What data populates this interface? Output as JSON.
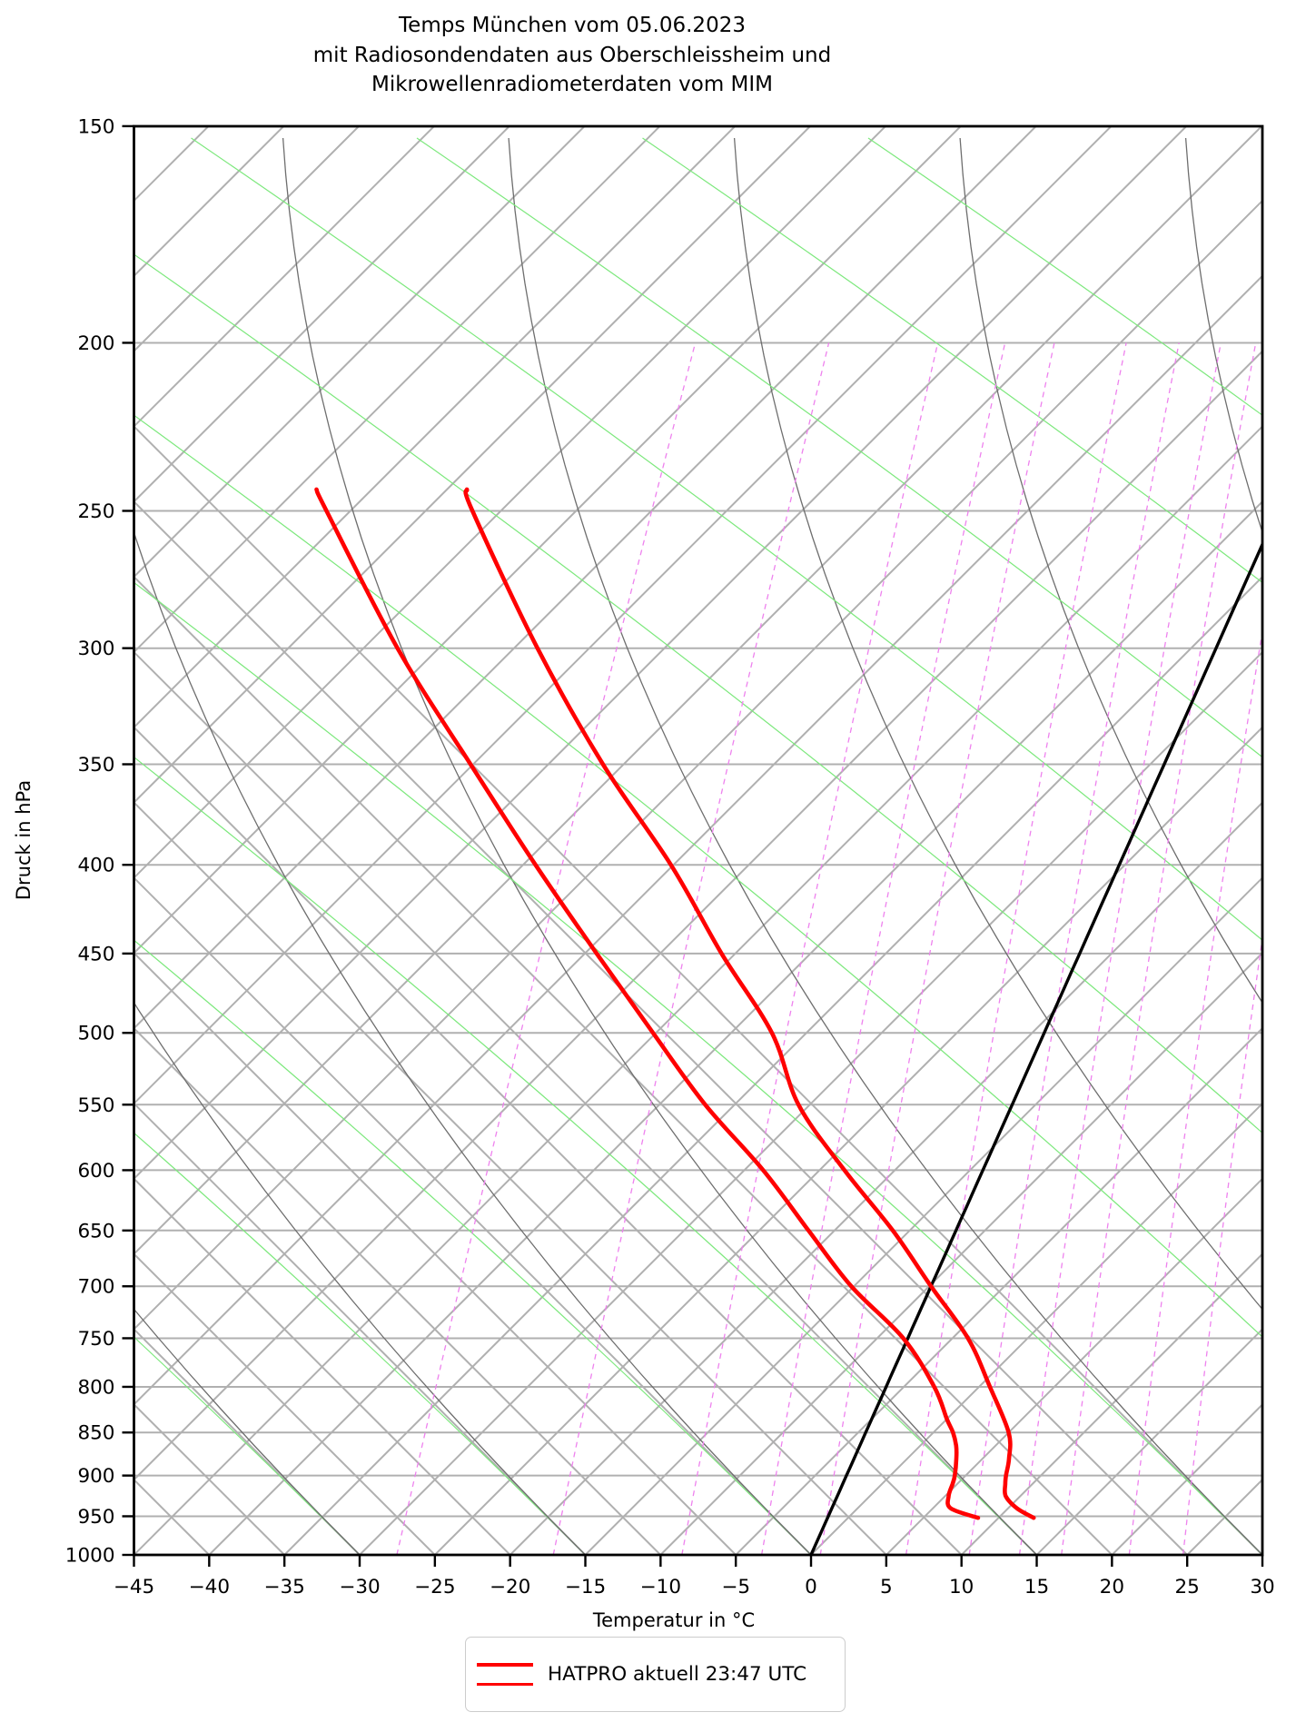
{
  "title": {
    "line1": "Temps München vom 05.06.2023",
    "line2": "mit Radiosondendaten aus Oberschleissheim und",
    "line3": "Mikrowellenradiometerdaten vom MIM"
  },
  "axes": {
    "x_label": "Temperatur in °C",
    "y_label": "Druck in hPa",
    "x_tick_labels": [
      "−45",
      "−40",
      "−35",
      "−30",
      "−25",
      "−20",
      "−15",
      "−10",
      "−5",
      "0",
      "5",
      "10",
      "15",
      "20",
      "25",
      "30"
    ],
    "x_tick_values": [
      -45,
      -40,
      -35,
      -30,
      -25,
      -20,
      -15,
      -10,
      -5,
      0,
      5,
      10,
      15,
      20,
      25,
      30
    ],
    "y_tick_values": [
      150,
      200,
      250,
      300,
      350,
      400,
      450,
      500,
      550,
      600,
      650,
      700,
      750,
      800,
      850,
      900,
      950,
      1000
    ],
    "x_range_c": [
      -45,
      30
    ],
    "y_range_hpa": [
      1000,
      150
    ],
    "y_scale": "log"
  },
  "legend": {
    "label": "HATPRO aktuell 23:47 UTC"
  },
  "colors": {
    "grid_light": "#b0b0b0",
    "adiabat_dark": "#6e6e6e",
    "moist_green": "#7de87d",
    "mixing_magenta": "#ee82ee",
    "profile_red": "#ff0000",
    "isotherm_black": "#000000",
    "legend_border": "#cccccc"
  },
  "chart_data": {
    "type": "line",
    "diagram": "skew-T log-p (Temp)",
    "title": "Temps München vom 05.06.2023 mit Radiosondendaten aus Oberschleissheim und Mikrowellenradiometerdaten vom MIM",
    "xlabel": "Temperatur in °C",
    "ylabel": "Druck in hPa",
    "xlim_c": [
      -45,
      30
    ],
    "ylim_hpa": [
      1000,
      150
    ],
    "grid": "skewed isotherm/adiabat grid, isobars every 50 hPa, diagonal lines every 5 °C, green pseudo-adiabats, magenta dashed mixing-ratio lines",
    "legend_position": "bottom center",
    "series": [
      {
        "name": "HATPRO aktuell 23:47 UTC (Temperatur)",
        "color": "#ff0000",
        "pressure_hpa": [
          952,
          940,
          925,
          910,
          900,
          880,
          850,
          800,
          750,
          700,
          650,
          600,
          550,
          500,
          450,
          400,
          350,
          300,
          250,
          243
        ],
        "temperature_c": [
          13.7,
          12.3,
          11.2,
          10.8,
          10.6,
          10.3,
          9.5,
          6.9,
          4.0,
          0.0,
          -4.2,
          -9.2,
          -14.2,
          -18.1,
          -23.8,
          -29.8,
          -37.3,
          -45.1,
          -53.5,
          -54.5
        ]
      },
      {
        "name": "HATPRO aktuell 23:47 UTC (Taupunkt)",
        "color": "#ff0000",
        "pressure_hpa": [
          952,
          940,
          925,
          910,
          900,
          880,
          865,
          850,
          835,
          800,
          750,
          700,
          650,
          600,
          550,
          500,
          450,
          400,
          350,
          300,
          250,
          243
        ],
        "temperature_c": [
          10.0,
          7.9,
          7.4,
          7.3,
          7.2,
          6.8,
          6.4,
          5.8,
          5.0,
          3.2,
          -0.3,
          -5.3,
          -9.8,
          -14.6,
          -20.4,
          -26.0,
          -32.1,
          -38.8,
          -46.1,
          -54.4,
          -63.2,
          -64.5
        ]
      }
    ],
    "reference_line": {
      "name": "0 °C Isotherme",
      "color": "#000000",
      "temperature_c": 0,
      "pressure_range_hpa": [
        1000,
        263
      ]
    },
    "mixing_ratio_lines_g_kg": [
      0.4,
      1,
      2,
      3,
      4,
      6,
      8,
      10,
      12,
      16,
      20,
      30
    ]
  }
}
